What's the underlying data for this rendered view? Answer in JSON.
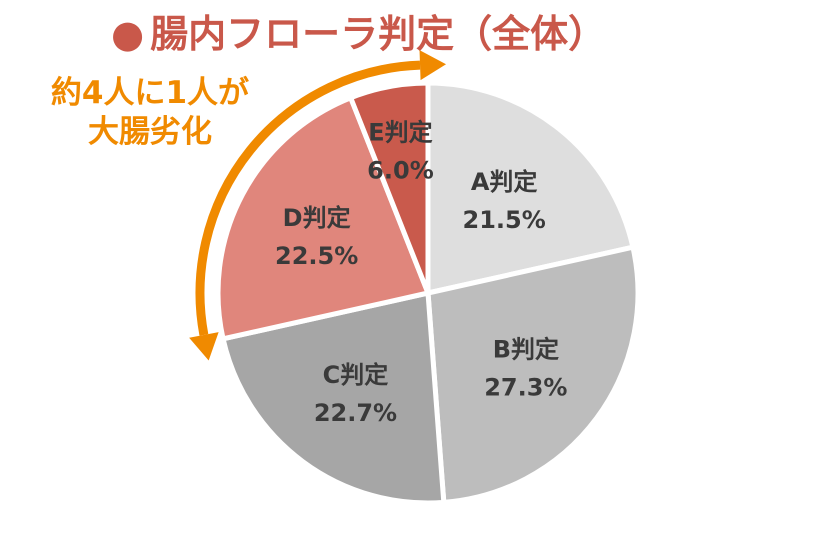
{
  "title": {
    "bullet": "●",
    "text": "腸内フローラ判定（全体）",
    "bullet_color": "#c9584a",
    "color": "#c9584a"
  },
  "callout": {
    "line1": "約4人に1人が",
    "line2": "大腸劣化",
    "color": "#f08a00"
  },
  "chart_data": {
    "type": "pie",
    "slices": [
      {
        "label": "A判定",
        "value": 21.5,
        "value_text": "21.5%",
        "color": "#dedede"
      },
      {
        "label": "B判定",
        "value": 27.3,
        "value_text": "27.3%",
        "color": "#bdbdbd"
      },
      {
        "label": "C判定",
        "value": 22.7,
        "value_text": "22.7%",
        "color": "#a6a6a6"
      },
      {
        "label": "D判定",
        "value": 22.5,
        "value_text": "22.5%",
        "color": "#e0867c"
      },
      {
        "label": "E判定",
        "value": 6.0,
        "value_text": "6.0%",
        "color": "#c95a4c"
      }
    ],
    "start_angle": "12 o'clock",
    "direction": "clockwise"
  }
}
